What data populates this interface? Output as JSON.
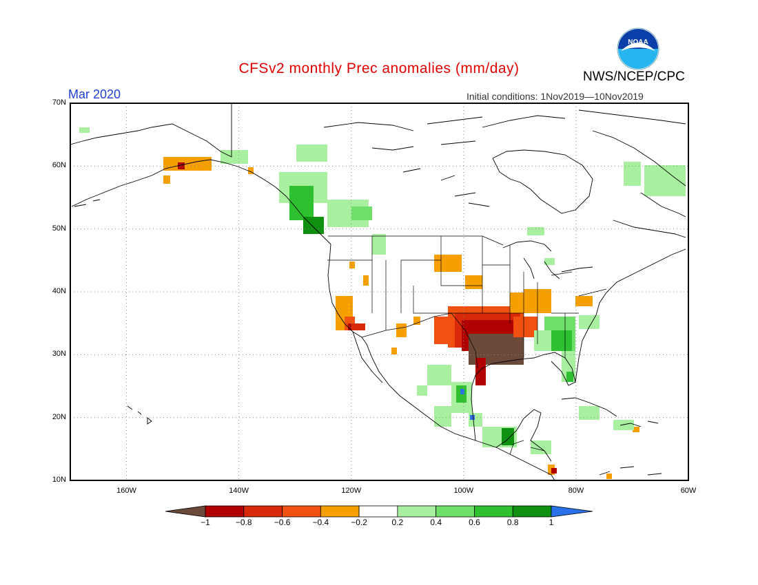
{
  "header": {
    "title": "CFSv2 monthly Prec anomalies (mm/day)",
    "org": "NWS/NCEP/CPC",
    "period": "Mar 2020",
    "initial_conditions": "Initial conditions: 1Nov2019—10Nov2019",
    "logo_text": "NOAA"
  },
  "map": {
    "lat_labels": [
      "70N",
      "60N",
      "50N",
      "40N",
      "30N",
      "20N",
      "10N"
    ],
    "lon_labels": [
      "160W",
      "140W",
      "120W",
      "100W",
      "80W",
      "60W"
    ],
    "lat_range": [
      10,
      70
    ],
    "lon_range": [
      -170,
      -60
    ]
  },
  "colorbar": {
    "ticks": [
      "−1",
      "−0.8",
      "−0.6",
      "−0.4",
      "−0.2",
      "0.2",
      "0.4",
      "0.6",
      "0.8",
      "1"
    ],
    "colors": [
      "#6b4a3a",
      "#b00000",
      "#d82a0a",
      "#f05010",
      "#f5a000",
      "#ffffff",
      "#a8f0a0",
      "#6ee06a",
      "#2ec02e",
      "#109010",
      "#2a70e8"
    ]
  }
}
